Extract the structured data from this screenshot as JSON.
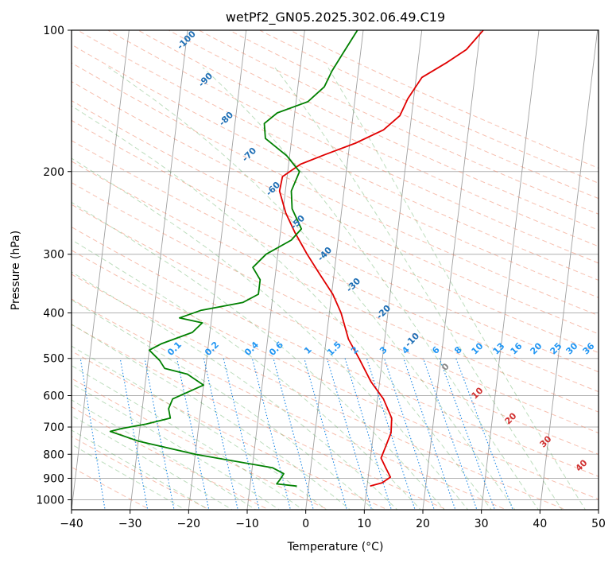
{
  "chart_data": {
    "type": "line",
    "subtype": "skew-t log-p diagram",
    "title": "wetPf2_GN05.2025.302.06.49.C19",
    "xlabel": "Temperature (°C)",
    "ylabel": "Pressure (hPa)",
    "xlim": [
      -40,
      50
    ],
    "ylim": [
      1050,
      100
    ],
    "yscale": "log",
    "xticks": [
      -40,
      -30,
      -20,
      -10,
      0,
      10,
      20,
      30,
      40,
      50
    ],
    "yticks": [
      100,
      200,
      300,
      400,
      500,
      600,
      700,
      800,
      900,
      1000
    ],
    "grid": true,
    "series": [
      {
        "color": "#e00000",
        "points": [
          [
            10.5,
            935
          ],
          [
            12.5,
            920
          ],
          [
            13.8,
            895
          ],
          [
            12.8,
            855
          ],
          [
            11.8,
            815
          ],
          [
            12.3,
            775
          ],
          [
            13.0,
            720
          ],
          [
            12.8,
            670
          ],
          [
            11.0,
            610
          ],
          [
            8.5,
            560
          ],
          [
            6.0,
            500
          ],
          [
            3.8,
            455
          ],
          [
            2.0,
            400
          ],
          [
            0.2,
            365
          ],
          [
            -2.5,
            330
          ],
          [
            -5.0,
            300
          ],
          [
            -7.5,
            270
          ],
          [
            -9.5,
            245
          ],
          [
            -11.0,
            220
          ],
          [
            -10.8,
            205
          ],
          [
            -8.0,
            193
          ],
          [
            -4.0,
            184
          ],
          [
            1.0,
            174
          ],
          [
            5.5,
            163
          ],
          [
            8.0,
            152
          ],
          [
            9.0,
            140
          ],
          [
            11.0,
            126
          ],
          [
            15.0,
            117
          ],
          [
            18.0,
            110
          ],
          [
            20.5,
            100
          ]
        ]
      },
      {
        "color": "#008000",
        "points": [
          [
            -2.0,
            935
          ],
          [
            -5.5,
            925
          ],
          [
            -5.0,
            905
          ],
          [
            -4.5,
            880
          ],
          [
            -6.5,
            855
          ],
          [
            -20.0,
            800
          ],
          [
            -30.0,
            750
          ],
          [
            -35.0,
            715
          ],
          [
            -33.0,
            705
          ],
          [
            -29.0,
            690
          ],
          [
            -25.0,
            670
          ],
          [
            -25.5,
            640
          ],
          [
            -25.0,
            610
          ],
          [
            -20.0,
            570
          ],
          [
            -23.0,
            540
          ],
          [
            -27.0,
            525
          ],
          [
            -28.0,
            505
          ],
          [
            -30.0,
            480
          ],
          [
            -28.0,
            465
          ],
          [
            -23.0,
            440
          ],
          [
            -21.5,
            420
          ],
          [
            -25.5,
            410
          ],
          [
            -22.0,
            395
          ],
          [
            -15.0,
            380
          ],
          [
            -12.5,
            365
          ],
          [
            -12.5,
            340
          ],
          [
            -14.0,
            320
          ],
          [
            -12.0,
            300
          ],
          [
            -8.0,
            280
          ],
          [
            -6.5,
            265
          ],
          [
            -8.5,
            240
          ],
          [
            -9.0,
            220
          ],
          [
            -8.0,
            200
          ],
          [
            -10.5,
            185
          ],
          [
            -14.5,
            170
          ],
          [
            -15.0,
            158
          ],
          [
            -13.0,
            150
          ],
          [
            -8.0,
            142
          ],
          [
            -5.5,
            132
          ],
          [
            -4.5,
            122
          ],
          [
            -3.0,
            112
          ],
          [
            -1.0,
            100
          ]
        ]
      }
    ],
    "dry_adiabat_labels": [
      "-100",
      "-90",
      "-80",
      "-70",
      "-60",
      "-50",
      "-40",
      "-30",
      "-20",
      "-10"
    ],
    "mixing_ratio_labels": [
      "0.1",
      "0.2",
      "0.4",
      "0.6",
      "1",
      "1.5",
      "2",
      "3",
      "4",
      "6",
      "8",
      "10",
      "13",
      "16",
      "20",
      "25",
      "30",
      "36"
    ],
    "moist_adiabat_labels": [
      "0",
      "10",
      "20",
      "30",
      "40"
    ],
    "colors": {
      "temperature": "#e00000",
      "dewpoint": "#008000",
      "dry_adiabat": "#f08060",
      "moist_adiabat": "#5aaa5a",
      "mixing_ratio": "#1e88e5",
      "isotherm": "#999999",
      "dry_label": "#1f6fb5",
      "moist_label": "#d03030",
      "zero_label": "#888888",
      "mixing_label": "#2196f3"
    }
  }
}
